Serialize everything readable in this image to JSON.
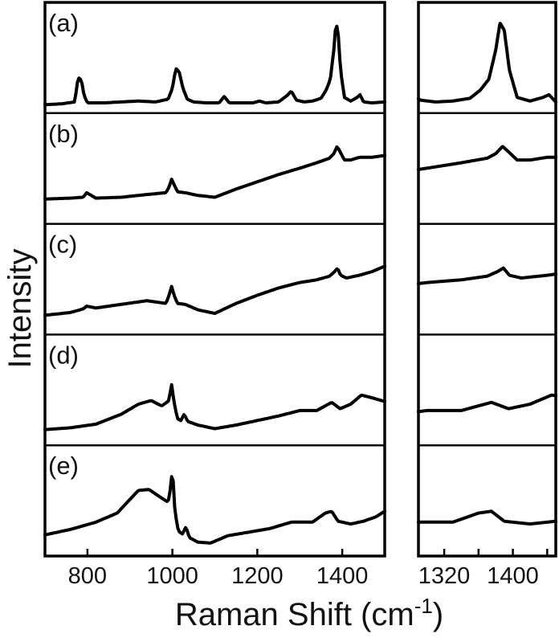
{
  "chart_data": {
    "type": "line",
    "xlabel": "Raman Shift (cm",
    "xlabel_superscript": "-1",
    "xlabel_close": ")",
    "ylabel": "Intensity",
    "y_tick_labels": "none",
    "colors": {
      "line": "#000000",
      "frame": "#000000",
      "background": "#ffffff"
    },
    "views": [
      {
        "name": "full",
        "xlim": [
          700,
          1500
        ],
        "xticks": [
          800,
          1000,
          1200,
          1400
        ],
        "tick_labels": [
          "800",
          "1000",
          "1200",
          "1400"
        ]
      },
      {
        "name": "zoom",
        "xlim": [
          1290,
          1450
        ],
        "xticks": [
          1320,
          1360,
          1400,
          1440
        ],
        "tick_labels": [
          "1320",
          "1400"
        ],
        "labeled_ticks": [
          1320,
          1400
        ]
      }
    ],
    "ylim": [
      0,
      1
    ],
    "series": [
      {
        "label": "(a)",
        "x": [
          700,
          740,
          770,
          778,
          786,
          792,
          800,
          840,
          880,
          920,
          960,
          990,
          1000,
          1008,
          1016,
          1025,
          1035,
          1050,
          1080,
          1110,
          1122,
          1134,
          1160,
          1190,
          1205,
          1220,
          1250,
          1270,
          1280,
          1292,
          1310,
          1330,
          1350,
          1362,
          1372,
          1380,
          1385,
          1390,
          1396,
          1405,
          1420,
          1435,
          1442,
          1450,
          1470,
          1500
        ],
        "y": [
          0.02,
          0.03,
          0.05,
          0.32,
          0.29,
          0.12,
          0.04,
          0.04,
          0.05,
          0.06,
          0.05,
          0.08,
          0.2,
          0.42,
          0.38,
          0.2,
          0.08,
          0.05,
          0.04,
          0.04,
          0.11,
          0.04,
          0.04,
          0.04,
          0.06,
          0.04,
          0.05,
          0.12,
          0.17,
          0.07,
          0.05,
          0.06,
          0.09,
          0.18,
          0.3,
          0.62,
          0.92,
          0.84,
          0.4,
          0.1,
          0.06,
          0.1,
          0.13,
          0.05,
          0.04,
          0.05
        ]
      },
      {
        "label": "(b)",
        "x": [
          700,
          760,
          790,
          798,
          820,
          880,
          940,
          985,
          993,
          998,
          1004,
          1012,
          1030,
          1060,
          1100,
          1150,
          1200,
          1250,
          1300,
          1340,
          1370,
          1380,
          1388,
          1395,
          1405,
          1420,
          1440,
          1470,
          1500
        ],
        "y": [
          0.2,
          0.21,
          0.22,
          0.27,
          0.21,
          0.22,
          0.25,
          0.27,
          0.34,
          0.42,
          0.36,
          0.28,
          0.27,
          0.24,
          0.22,
          0.31,
          0.39,
          0.47,
          0.54,
          0.6,
          0.65,
          0.7,
          0.78,
          0.72,
          0.63,
          0.63,
          0.66,
          0.66,
          0.68
        ]
      },
      {
        "label": "(c)",
        "x": [
          700,
          760,
          790,
          798,
          820,
          880,
          940,
          985,
          993,
          998,
          1004,
          1012,
          1030,
          1060,
          1100,
          1150,
          1200,
          1250,
          1300,
          1340,
          1370,
          1382,
          1389,
          1396,
          1410,
          1440,
          1470,
          1500
        ],
        "y": [
          0.14,
          0.17,
          0.21,
          0.24,
          0.22,
          0.26,
          0.3,
          0.27,
          0.37,
          0.46,
          0.36,
          0.27,
          0.26,
          0.2,
          0.16,
          0.27,
          0.36,
          0.44,
          0.5,
          0.53,
          0.57,
          0.62,
          0.66,
          0.58,
          0.55,
          0.58,
          0.62,
          0.68
        ]
      },
      {
        "label": "(d)",
        "x": [
          700,
          760,
          820,
          880,
          920,
          950,
          975,
          992,
          998,
          1004,
          1012,
          1020,
          1028,
          1036,
          1060,
          1100,
          1150,
          1200,
          1250,
          1300,
          1340,
          1375,
          1395,
          1420,
          1445,
          1470,
          1500
        ],
        "y": [
          0.1,
          0.12,
          0.16,
          0.27,
          0.38,
          0.42,
          0.36,
          0.42,
          0.6,
          0.4,
          0.22,
          0.2,
          0.27,
          0.19,
          0.15,
          0.11,
          0.15,
          0.2,
          0.25,
          0.31,
          0.31,
          0.4,
          0.33,
          0.38,
          0.48,
          0.45,
          0.41
        ]
      },
      {
        "label": "(e)",
        "x": [
          700,
          760,
          820,
          870,
          900,
          920,
          945,
          970,
          990,
          996,
          1000,
          1006,
          1014,
          1024,
          1032,
          1040,
          1060,
          1090,
          1130,
          1180,
          1230,
          1280,
          1330,
          1360,
          1375,
          1390,
          1420,
          1450,
          1480,
          1500
        ],
        "y": [
          0.16,
          0.22,
          0.3,
          0.4,
          0.55,
          0.65,
          0.66,
          0.58,
          0.52,
          0.68,
          0.9,
          0.42,
          0.2,
          0.17,
          0.25,
          0.13,
          0.08,
          0.07,
          0.15,
          0.19,
          0.23,
          0.3,
          0.3,
          0.4,
          0.42,
          0.31,
          0.28,
          0.31,
          0.36,
          0.42
        ]
      }
    ]
  }
}
